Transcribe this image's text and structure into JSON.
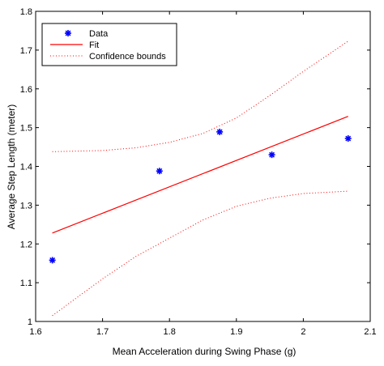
{
  "chart_data": {
    "type": "scatter",
    "title": "",
    "xlabel": "Mean Acceleration during Swing Phase (g)",
    "ylabel": "Average Step Length (meter)",
    "xlim": [
      1.6,
      2.1
    ],
    "ylim": [
      1.0,
      1.8
    ],
    "xticks": [
      "1.6",
      "1.7",
      "1.8",
      "1.9",
      "2",
      "2.1"
    ],
    "yticks": [
      "1",
      "1.1",
      "1.2",
      "1.3",
      "1.4",
      "1.5",
      "1.6",
      "1.7",
      "1.8"
    ],
    "grid": false,
    "legend_position": "top-left",
    "series": [
      {
        "name": "Data",
        "kind": "markers",
        "marker": "asterisk",
        "color": "#0000ff",
        "x": [
          1.625,
          1.785,
          1.875,
          1.953,
          2.067
        ],
        "y": [
          1.158,
          1.388,
          1.489,
          1.43,
          1.472
        ]
      },
      {
        "name": "Fit",
        "kind": "line",
        "style": "solid",
        "color": "#ff0000",
        "x": [
          1.625,
          2.067
        ],
        "y": [
          1.228,
          1.529
        ]
      },
      {
        "name": "Confidence bounds",
        "kind": "line",
        "style": "dotted",
        "color": "#ff0000",
        "upper": {
          "x": [
            1.625,
            1.7,
            1.75,
            1.8,
            1.85,
            1.9,
            1.95,
            2.0,
            2.067
          ],
          "y": [
            1.438,
            1.441,
            1.448,
            1.462,
            1.485,
            1.525,
            1.583,
            1.645,
            1.723
          ]
        },
        "lower": {
          "x": [
            1.625,
            1.7,
            1.75,
            1.8,
            1.85,
            1.9,
            1.95,
            2.0,
            2.067
          ],
          "y": [
            1.015,
            1.11,
            1.168,
            1.215,
            1.262,
            1.297,
            1.318,
            1.33,
            1.336
          ]
        }
      }
    ]
  }
}
